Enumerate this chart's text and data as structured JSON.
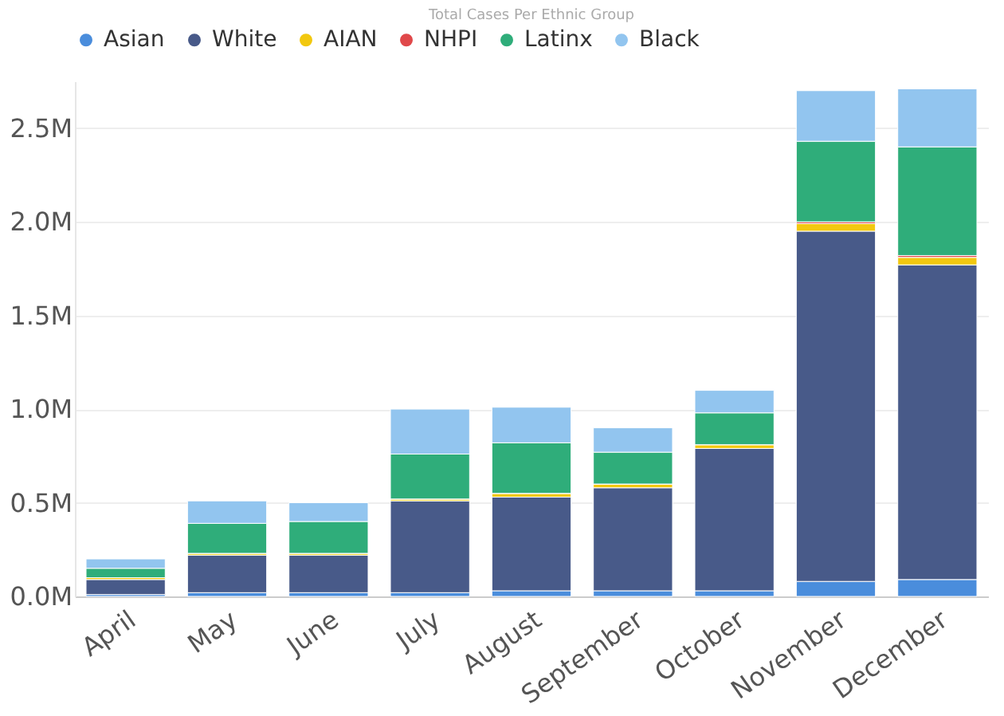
{
  "chart_data": {
    "type": "bar",
    "title": "Total Cases Per Ethnic Group",
    "stacked": true,
    "legend": "top left",
    "grid": "y",
    "categories": [
      "April",
      "May",
      "June",
      "July",
      "August",
      "September",
      "October",
      "November",
      "December"
    ],
    "series": [
      {
        "name": "Asian",
        "color": "#4a8ddc",
        "values": [
          0.01,
          0.02,
          0.02,
          0.02,
          0.03,
          0.03,
          0.03,
          0.08,
          0.09
        ]
      },
      {
        "name": "White",
        "color": "#485a89",
        "values": [
          0.08,
          0.2,
          0.2,
          0.49,
          0.5,
          0.55,
          0.76,
          1.87,
          1.68
        ]
      },
      {
        "name": "AIAN",
        "color": "#f2c80f",
        "values": [
          0.01,
          0.01,
          0.01,
          0.01,
          0.02,
          0.02,
          0.02,
          0.04,
          0.04
        ]
      },
      {
        "name": "NHPI",
        "color": "#e0484a",
        "values": [
          0.0,
          0.0,
          0.0,
          0.0,
          0.0,
          0.0,
          0.0,
          0.01,
          0.01
        ]
      },
      {
        "name": "Latinx",
        "color": "#2fad7a",
        "values": [
          0.05,
          0.16,
          0.17,
          0.24,
          0.27,
          0.17,
          0.17,
          0.43,
          0.58
        ]
      },
      {
        "name": "Black",
        "color": "#92c5ef",
        "values": [
          0.05,
          0.12,
          0.1,
          0.24,
          0.19,
          0.13,
          0.12,
          0.27,
          0.31
        ]
      }
    ],
    "ylim": [
      0,
      2.75
    ],
    "yticks": [
      {
        "value": 0,
        "label": "0.0M"
      },
      {
        "value": 0.5,
        "label": "0.5M"
      },
      {
        "value": 1.0,
        "label": "1.0M"
      },
      {
        "value": 1.5,
        "label": "1.5M"
      },
      {
        "value": 2.0,
        "label": "2.0M"
      },
      {
        "value": 2.5,
        "label": "2.5M"
      }
    ]
  }
}
